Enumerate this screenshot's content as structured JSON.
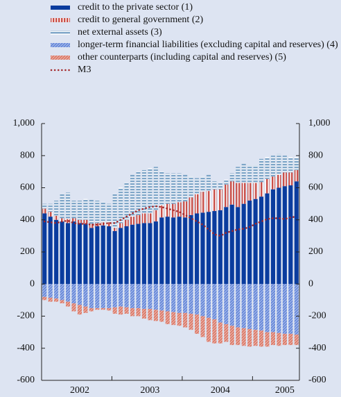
{
  "chart_data": {
    "type": "stacked_bar_line",
    "categories": [
      null,
      null,
      null,
      null,
      null,
      null,
      "2002",
      null,
      null,
      null,
      null,
      null,
      null,
      null,
      null,
      null,
      null,
      null,
      "2003",
      null,
      null,
      null,
      null,
      null,
      null,
      null,
      null,
      null,
      null,
      null,
      "2004",
      null,
      null,
      null,
      null,
      null,
      null,
      null,
      null,
      null,
      null,
      "2005",
      null,
      null
    ],
    "series": [
      {
        "name": "credit to the private sector (1)",
        "color": "#0a3c9e",
        "hatch": "none",
        "type": "bar",
        "values": [
          440,
          420,
          400,
          390,
          380,
          390,
          380,
          375,
          350,
          360,
          365,
          360,
          330,
          350,
          360,
          370,
          375,
          380,
          380,
          390,
          415,
          420,
          415,
          420,
          415,
          430,
          440,
          445,
          450,
          455,
          460,
          480,
          495,
          480,
          500,
          520,
          530,
          545,
          565,
          590,
          600,
          610,
          615,
          640
        ]
      },
      {
        "name": "credit to general government (2)",
        "color": "#c9504a",
        "hatch": "vertical",
        "type": "bar",
        "values": [
          30,
          30,
          25,
          20,
          25,
          20,
          20,
          25,
          25,
          20,
          20,
          25,
          20,
          30,
          40,
          50,
          55,
          60,
          60,
          70,
          75,
          80,
          85,
          90,
          100,
          110,
          120,
          130,
          130,
          135,
          130,
          140,
          145,
          150,
          130,
          110,
          100,
          90,
          90,
          80,
          80,
          85,
          80,
          70
        ]
      },
      {
        "name": "net external assets (3)",
        "color": "#7fa6c8",
        "hatch": "horizontal",
        "type": "bar",
        "values": [
          30,
          50,
          95,
          150,
          165,
          110,
          120,
          130,
          150,
          140,
          125,
          115,
          210,
          220,
          230,
          260,
          270,
          270,
          280,
          270,
          210,
          190,
          190,
          180,
          165,
          130,
          100,
          95,
          100,
          50,
          40,
          30,
          50,
          100,
          120,
          110,
          110,
          145,
          135,
          130,
          130,
          105,
          95,
          80
        ]
      },
      {
        "name": "longer-term financial liabilities (excluding capital and reserves) (4)",
        "color": "#5b7fd6",
        "hatch": "diagonal",
        "type": "bar",
        "values": [
          -80,
          -85,
          -90,
          -100,
          -110,
          -120,
          -130,
          -140,
          -150,
          -150,
          -150,
          -150,
          -145,
          -140,
          -145,
          -150,
          -150,
          -155,
          -155,
          -160,
          -165,
          -170,
          -175,
          -180,
          -180,
          -185,
          -190,
          -200,
          -210,
          -220,
          -240,
          -250,
          -260,
          -270,
          -275,
          -280,
          -285,
          -290,
          -300,
          -300,
          -305,
          -310,
          -310,
          -315
        ]
      },
      {
        "name": "other counterparts (including capital and reserves) (5)",
        "color": "#d8705e",
        "hatch": "diagonal",
        "type": "bar",
        "values": [
          -20,
          -25,
          -20,
          -20,
          -30,
          -50,
          -60,
          -40,
          -20,
          -10,
          -10,
          -15,
          -40,
          -50,
          -40,
          -50,
          -50,
          -60,
          -70,
          -70,
          -70,
          -80,
          -80,
          -80,
          -90,
          -100,
          -120,
          -130,
          -150,
          -150,
          -130,
          -110,
          -120,
          -110,
          -110,
          -110,
          -100,
          -100,
          -90,
          -80,
          -80,
          -70,
          -70,
          -65
        ]
      },
      {
        "name": "M3",
        "color": "#a3282a",
        "type": "line",
        "values": [
          390,
          385,
          380,
          390,
          395,
          380,
          375,
          375,
          370,
          370,
          375,
          380,
          380,
          400,
          420,
          440,
          460,
          470,
          480,
          485,
          480,
          470,
          460,
          450,
          430,
          410,
          390,
          370,
          340,
          310,
          300,
          320,
          330,
          340,
          345,
          355,
          375,
          390,
          405,
          410,
          410,
          405,
          415,
          420
        ]
      }
    ],
    "ylim": [
      -600,
      1000
    ],
    "yticks": [
      -600,
      -400,
      -200,
      0,
      200,
      400,
      600,
      800,
      {
        "value": 1000,
        "label": "1,000"
      }
    ],
    "y2lim": [
      -600,
      1000
    ],
    "y2ticks": [
      -600,
      -400,
      -200,
      0,
      200,
      400,
      600,
      800,
      {
        "value": 1000,
        "label": "1,000"
      }
    ],
    "grid": false
  }
}
